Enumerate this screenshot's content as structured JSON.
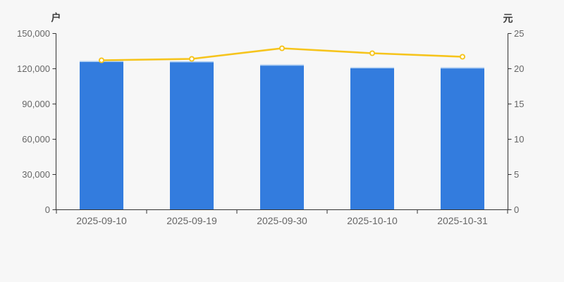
{
  "chart_data": {
    "type": "bar",
    "title": "",
    "categories": [
      "2025-09-10",
      "2025-09-19",
      "2025-09-30",
      "2025-10-10",
      "2025-10-31"
    ],
    "series": [
      {
        "type": "bar",
        "y_axis": "left",
        "unit": "户",
        "values": [
          126600,
          126300,
          123400,
          121200,
          121000
        ],
        "color": "#337cde",
        "bar_top_highlight": "#a9cbf2"
      },
      {
        "type": "line",
        "y_axis": "right",
        "unit": "元",
        "values": [
          21.2,
          21.4,
          22.9,
          22.2,
          21.7
        ],
        "color": "#f6c41c",
        "marker": "hollow-circle",
        "marker_fill": "#ffffff"
      }
    ],
    "left_axis": {
      "unit_label": "户",
      "min": 0,
      "max": 150000,
      "tick_labels": [
        "0",
        "30,000",
        "60,000",
        "90,000",
        "120,000",
        "150,000"
      ]
    },
    "right_axis": {
      "unit_label": "元",
      "min": 0,
      "max": 25,
      "tick_labels": [
        "0",
        "5",
        "10",
        "15",
        "20",
        "25"
      ]
    },
    "x_axis": {
      "tick_labels": [
        "2025-09-10",
        "2025-09-19",
        "2025-09-30",
        "2025-10-10",
        "2025-10-31"
      ]
    },
    "grid": false,
    "legend_position": "none"
  },
  "colors": {
    "background": "#f7f7f7",
    "axis_line": "#333333",
    "tick_text": "#666666",
    "unit_text": "#3c3c3c"
  }
}
